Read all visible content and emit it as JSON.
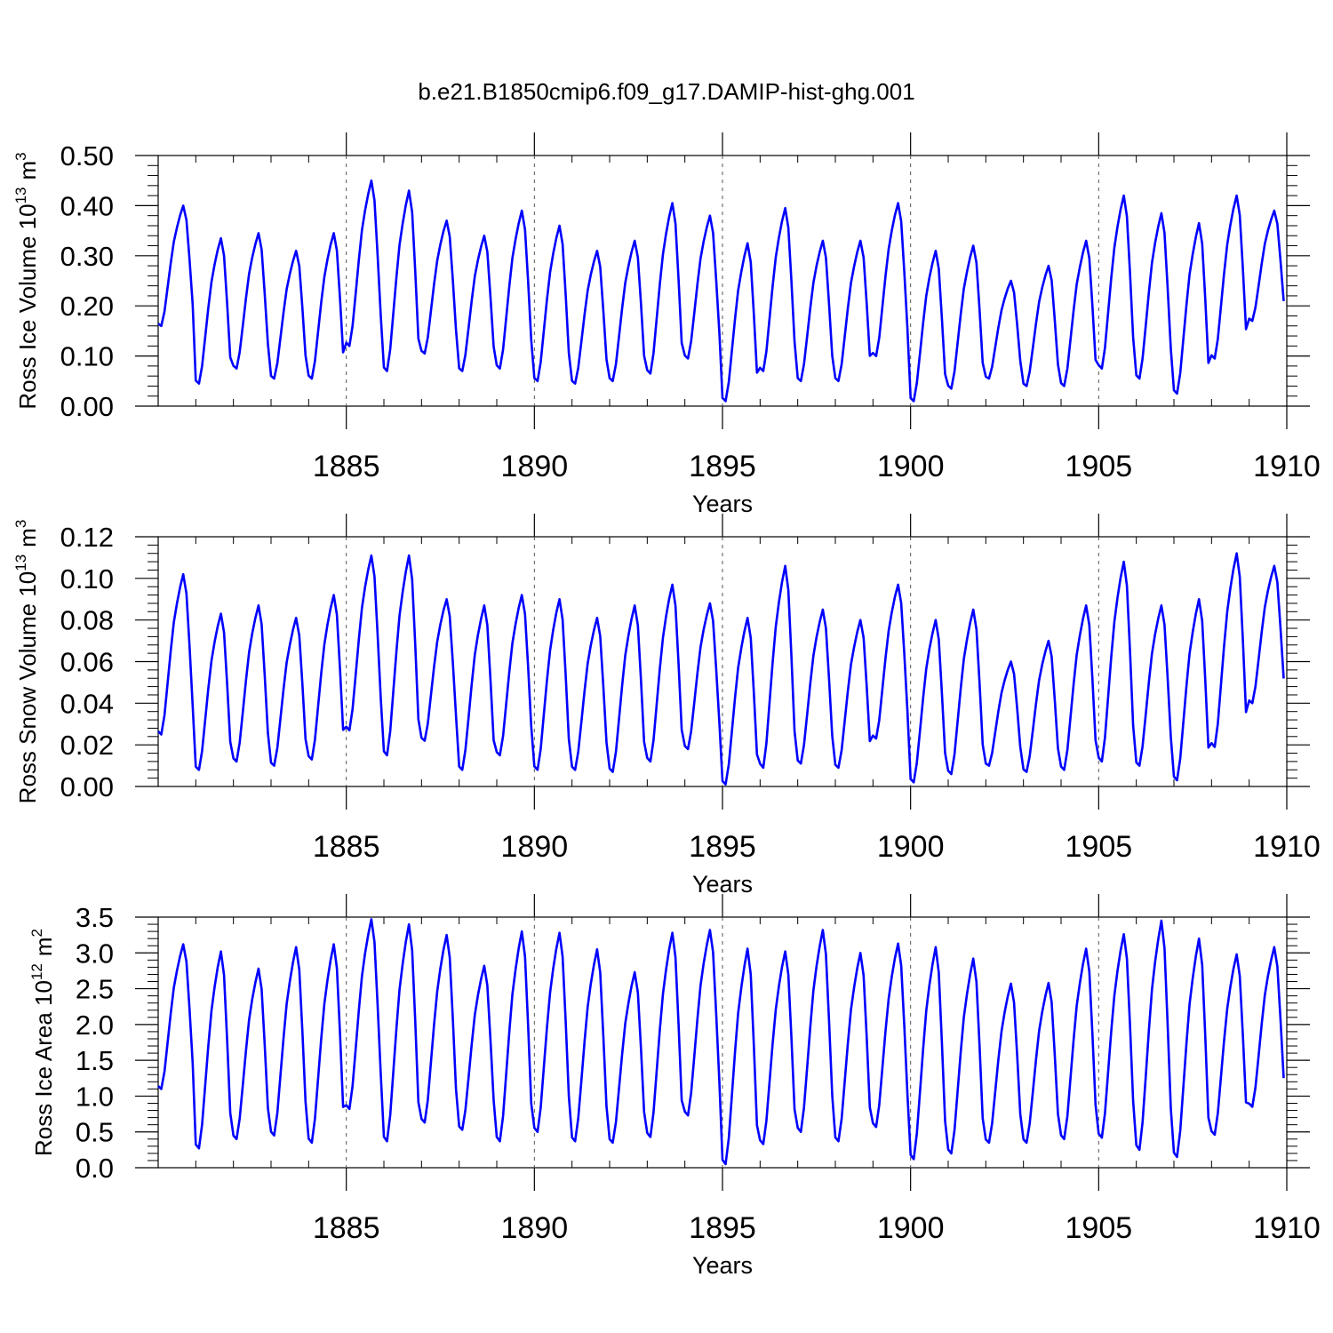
{
  "figure": {
    "title": "b.e21.B1850cmip6.f09_g17.DAMIP-hist-ghg.001"
  },
  "colors": {
    "series": "#0000ff",
    "axis": "#000000",
    "refline": "#555555"
  },
  "chart_data": [
    {
      "type": "line",
      "title": "",
      "xlabel": "Years",
      "ylabel": "Ross Ice Volume 10",
      "ylabel_sup": "13",
      "ylabel_unit": "m",
      "ylabel_unit_sup": "3",
      "xlim": [
        1880,
        1910
      ],
      "ylim": [
        0.0,
        0.5
      ],
      "xticks": [
        1885,
        1890,
        1895,
        1900,
        1905,
        1910
      ],
      "xtick_labels": [
        "1885",
        "1890",
        "1895",
        "1900",
        "1905",
        "1910"
      ],
      "yticks": [
        0.0,
        0.1,
        0.2,
        0.3,
        0.4,
        0.5
      ],
      "ytick_labels": [
        "0.00",
        "0.10",
        "0.20",
        "0.30",
        "0.40",
        "0.50"
      ],
      "reference_lines_x": [
        1885,
        1890,
        1895,
        1900,
        1905
      ],
      "series": [
        {
          "name": "Ross Ice Volume",
          "x_start": 1880,
          "x_step_months": 1,
          "yearly_max": [
            0.4,
            0.335,
            0.345,
            0.31,
            0.345,
            0.45,
            0.43,
            0.37,
            0.34,
            0.39,
            0.36,
            0.31,
            0.33,
            0.405,
            0.38,
            0.325,
            0.395,
            0.33,
            0.33,
            0.405,
            0.31,
            0.32,
            0.25,
            0.28,
            0.33,
            0.42,
            0.385,
            0.365,
            0.42,
            0.39
          ],
          "yearly_min": [
            0.16,
            0.045,
            0.075,
            0.055,
            0.055,
            0.12,
            0.07,
            0.105,
            0.07,
            0.075,
            0.05,
            0.045,
            0.05,
            0.065,
            0.095,
            0.01,
            0.07,
            0.05,
            0.05,
            0.1,
            0.01,
            0.035,
            0.055,
            0.04,
            0.04,
            0.075,
            0.055,
            0.025,
            0.095,
            0.17
          ]
        }
      ]
    },
    {
      "type": "line",
      "title": "",
      "xlabel": "Years",
      "ylabel": "Ross Snow Volume 10",
      "ylabel_sup": "13",
      "ylabel_unit": "m",
      "ylabel_unit_sup": "3",
      "xlim": [
        1880,
        1910
      ],
      "ylim": [
        0.0,
        0.12
      ],
      "xticks": [
        1885,
        1890,
        1895,
        1900,
        1905,
        1910
      ],
      "xtick_labels": [
        "1885",
        "1890",
        "1895",
        "1900",
        "1905",
        "1910"
      ],
      "yticks": [
        0.0,
        0.02,
        0.04,
        0.06,
        0.08,
        0.1,
        0.12
      ],
      "ytick_labels": [
        "0.00",
        "0.02",
        "0.04",
        "0.06",
        "0.08",
        "0.10",
        "0.12"
      ],
      "reference_lines_x": [
        1885,
        1890,
        1895,
        1900,
        1905
      ],
      "series": [
        {
          "name": "Ross Snow Volume",
          "x_start": 1880,
          "x_step_months": 1,
          "yearly_max": [
            0.102,
            0.083,
            0.087,
            0.081,
            0.092,
            0.111,
            0.111,
            0.09,
            0.087,
            0.092,
            0.09,
            0.081,
            0.087,
            0.097,
            0.088,
            0.081,
            0.106,
            0.085,
            0.08,
            0.097,
            0.08,
            0.085,
            0.06,
            0.07,
            0.087,
            0.108,
            0.087,
            0.09,
            0.112,
            0.106
          ],
          "yearly_min": [
            0.025,
            0.008,
            0.012,
            0.01,
            0.013,
            0.027,
            0.015,
            0.022,
            0.008,
            0.015,
            0.008,
            0.008,
            0.007,
            0.012,
            0.018,
            0.001,
            0.009,
            0.011,
            0.009,
            0.023,
            0.002,
            0.006,
            0.01,
            0.007,
            0.008,
            0.012,
            0.01,
            0.003,
            0.019,
            0.04
          ]
        }
      ]
    },
    {
      "type": "line",
      "title": "",
      "xlabel": "Years",
      "ylabel": "Ross Ice Area 10",
      "ylabel_sup": "12",
      "ylabel_unit": "m",
      "ylabel_unit_sup": "2",
      "xlim": [
        1880,
        1910
      ],
      "ylim": [
        0.0,
        3.5
      ],
      "xticks": [
        1885,
        1890,
        1895,
        1900,
        1905,
        1910
      ],
      "xtick_labels": [
        "1885",
        "1890",
        "1895",
        "1900",
        "1905",
        "1910"
      ],
      "yticks": [
        0.0,
        0.5,
        1.0,
        1.5,
        2.0,
        2.5,
        3.0,
        3.5
      ],
      "ytick_labels": [
        "0.0",
        "0.5",
        "1.0",
        "1.5",
        "2.0",
        "2.5",
        "3.0",
        "3.5"
      ],
      "reference_lines_x": [
        1885,
        1890,
        1895,
        1900,
        1905
      ],
      "series": [
        {
          "name": "Ross Ice Area",
          "x_start": 1880,
          "x_step_months": 1,
          "yearly_max": [
            3.12,
            3.02,
            2.78,
            3.08,
            3.12,
            3.47,
            3.4,
            3.25,
            2.82,
            3.3,
            3.28,
            3.05,
            2.73,
            3.28,
            3.32,
            3.06,
            3.02,
            3.32,
            3.0,
            3.13,
            3.08,
            2.92,
            2.57,
            2.58,
            3.06,
            3.26,
            3.45,
            3.2,
            2.98,
            3.08
          ],
          "yearly_min": [
            1.1,
            0.27,
            0.4,
            0.45,
            0.35,
            0.82,
            0.37,
            0.63,
            0.53,
            0.37,
            0.5,
            0.37,
            0.35,
            0.43,
            0.73,
            0.05,
            0.33,
            0.5,
            0.37,
            0.57,
            0.12,
            0.2,
            0.35,
            0.35,
            0.4,
            0.42,
            0.25,
            0.15,
            0.46,
            0.85
          ]
        }
      ]
    }
  ]
}
